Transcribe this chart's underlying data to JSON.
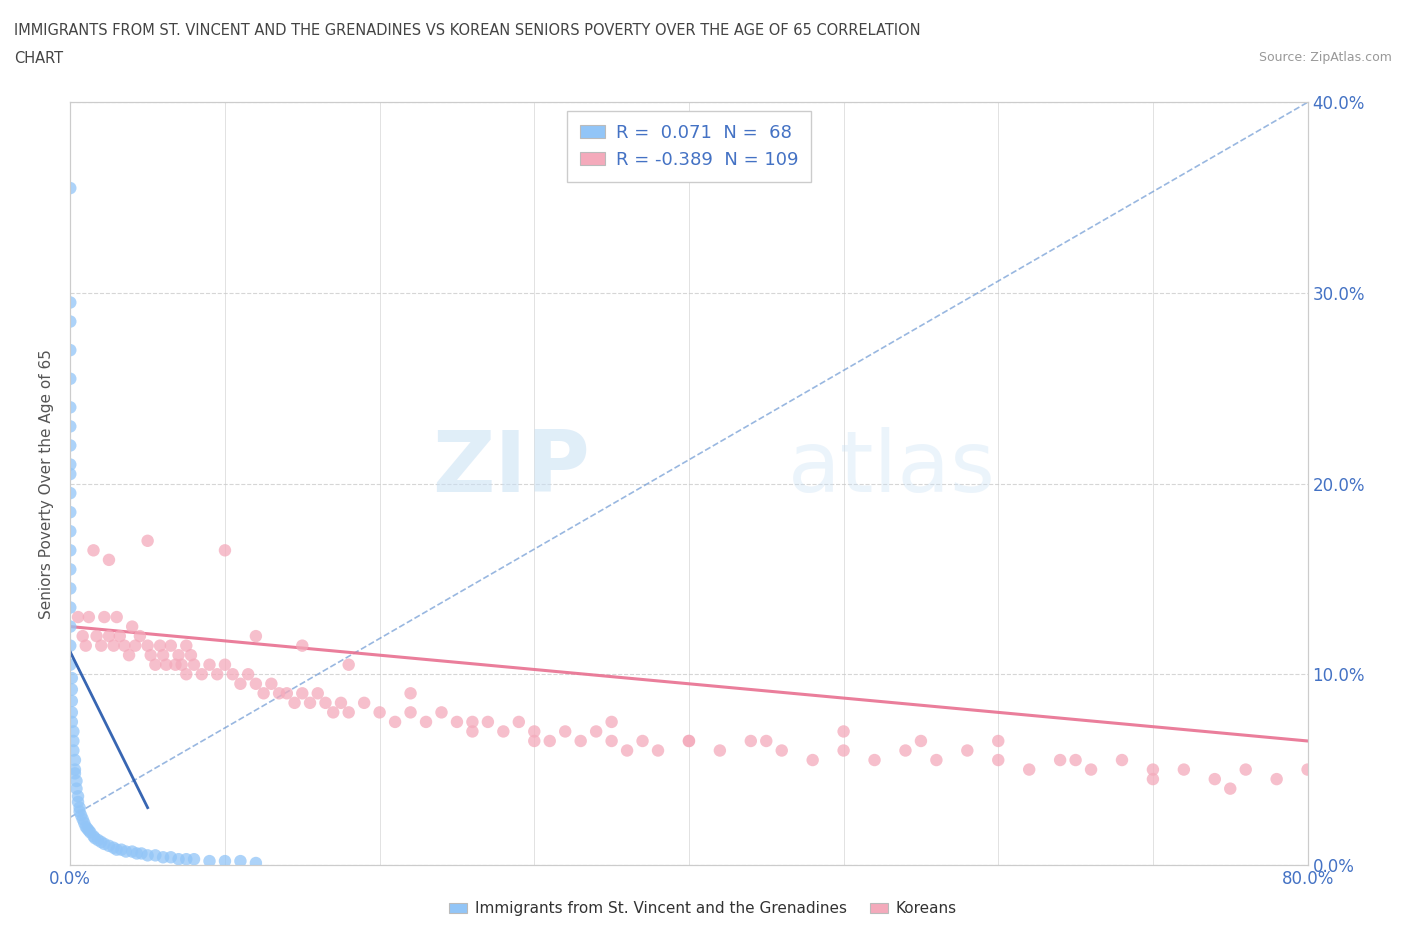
{
  "title_line1": "IMMIGRANTS FROM ST. VINCENT AND THE GRENADINES VS KOREAN SENIORS POVERTY OVER THE AGE OF 65 CORRELATION",
  "title_line2": "CHART",
  "source_text": "Source: ZipAtlas.com",
  "ylabel": "Seniors Poverty Over the Age of 65",
  "watermark_zip": "ZIP",
  "watermark_atlas": "atlas",
  "blue_color": "#92C5F7",
  "pink_color": "#F4AABB",
  "blue_line_color": "#5588CC",
  "pink_line_color": "#E87090",
  "legend_text_color": "#4472C4",
  "xlim": [
    0.0,
    0.8
  ],
  "ylim": [
    0.0,
    0.4
  ],
  "xticks": [
    0.0,
    0.1,
    0.2,
    0.3,
    0.4,
    0.5,
    0.6,
    0.7,
    0.8
  ],
  "yticks": [
    0.0,
    0.1,
    0.2,
    0.3,
    0.4
  ],
  "ytick_labels_right": [
    "0.0%",
    "10.0%",
    "20.0%",
    "30.0%",
    "40.0%"
  ],
  "blue_scatter_x": [
    0.0,
    0.0,
    0.0,
    0.0,
    0.0,
    0.0,
    0.0,
    0.0,
    0.0,
    0.0,
    0.0,
    0.0,
    0.0,
    0.0,
    0.0,
    0.0,
    0.0,
    0.0,
    0.0,
    0.0,
    0.001,
    0.001,
    0.001,
    0.001,
    0.001,
    0.002,
    0.002,
    0.002,
    0.003,
    0.003,
    0.003,
    0.004,
    0.004,
    0.005,
    0.005,
    0.006,
    0.006,
    0.007,
    0.008,
    0.009,
    0.01,
    0.011,
    0.012,
    0.013,
    0.015,
    0.016,
    0.018,
    0.02,
    0.022,
    0.025,
    0.028,
    0.03,
    0.033,
    0.036,
    0.04,
    0.043,
    0.046,
    0.05,
    0.055,
    0.06,
    0.065,
    0.07,
    0.075,
    0.08,
    0.09,
    0.1,
    0.11,
    0.12
  ],
  "blue_scatter_y": [
    0.355,
    0.295,
    0.285,
    0.27,
    0.255,
    0.24,
    0.23,
    0.22,
    0.21,
    0.205,
    0.195,
    0.185,
    0.175,
    0.165,
    0.155,
    0.145,
    0.135,
    0.125,
    0.115,
    0.105,
    0.098,
    0.092,
    0.086,
    0.08,
    0.075,
    0.07,
    0.065,
    0.06,
    0.055,
    0.05,
    0.048,
    0.044,
    0.04,
    0.036,
    0.033,
    0.03,
    0.028,
    0.026,
    0.024,
    0.022,
    0.02,
    0.019,
    0.018,
    0.017,
    0.015,
    0.014,
    0.013,
    0.012,
    0.011,
    0.01,
    0.009,
    0.008,
    0.008,
    0.007,
    0.007,
    0.006,
    0.006,
    0.005,
    0.005,
    0.004,
    0.004,
    0.003,
    0.003,
    0.003,
    0.002,
    0.002,
    0.002,
    0.001
  ],
  "pink_scatter_x": [
    0.005,
    0.008,
    0.01,
    0.012,
    0.015,
    0.017,
    0.02,
    0.022,
    0.025,
    0.028,
    0.03,
    0.032,
    0.035,
    0.038,
    0.04,
    0.042,
    0.045,
    0.05,
    0.052,
    0.055,
    0.058,
    0.06,
    0.062,
    0.065,
    0.068,
    0.07,
    0.072,
    0.075,
    0.078,
    0.08,
    0.085,
    0.09,
    0.095,
    0.1,
    0.105,
    0.11,
    0.115,
    0.12,
    0.125,
    0.13,
    0.135,
    0.14,
    0.145,
    0.15,
    0.155,
    0.16,
    0.165,
    0.17,
    0.175,
    0.18,
    0.19,
    0.2,
    0.21,
    0.22,
    0.23,
    0.24,
    0.25,
    0.26,
    0.27,
    0.28,
    0.29,
    0.3,
    0.31,
    0.32,
    0.33,
    0.34,
    0.35,
    0.36,
    0.37,
    0.38,
    0.4,
    0.42,
    0.44,
    0.46,
    0.48,
    0.5,
    0.52,
    0.54,
    0.56,
    0.58,
    0.6,
    0.62,
    0.64,
    0.66,
    0.68,
    0.7,
    0.72,
    0.74,
    0.76,
    0.78,
    0.8,
    0.025,
    0.05,
    0.075,
    0.1,
    0.12,
    0.15,
    0.18,
    0.22,
    0.26,
    0.3,
    0.35,
    0.4,
    0.45,
    0.5,
    0.55,
    0.6,
    0.65,
    0.7,
    0.75
  ],
  "pink_scatter_y": [
    0.13,
    0.12,
    0.115,
    0.13,
    0.165,
    0.12,
    0.115,
    0.13,
    0.12,
    0.115,
    0.13,
    0.12,
    0.115,
    0.11,
    0.125,
    0.115,
    0.12,
    0.115,
    0.11,
    0.105,
    0.115,
    0.11,
    0.105,
    0.115,
    0.105,
    0.11,
    0.105,
    0.1,
    0.11,
    0.105,
    0.1,
    0.105,
    0.1,
    0.105,
    0.1,
    0.095,
    0.1,
    0.095,
    0.09,
    0.095,
    0.09,
    0.09,
    0.085,
    0.09,
    0.085,
    0.09,
    0.085,
    0.08,
    0.085,
    0.08,
    0.085,
    0.08,
    0.075,
    0.08,
    0.075,
    0.08,
    0.075,
    0.07,
    0.075,
    0.07,
    0.075,
    0.07,
    0.065,
    0.07,
    0.065,
    0.07,
    0.065,
    0.06,
    0.065,
    0.06,
    0.065,
    0.06,
    0.065,
    0.06,
    0.055,
    0.06,
    0.055,
    0.06,
    0.055,
    0.06,
    0.055,
    0.05,
    0.055,
    0.05,
    0.055,
    0.05,
    0.05,
    0.045,
    0.05,
    0.045,
    0.05,
    0.16,
    0.17,
    0.115,
    0.165,
    0.12,
    0.115,
    0.105,
    0.09,
    0.075,
    0.065,
    0.075,
    0.065,
    0.065,
    0.07,
    0.065,
    0.065,
    0.055,
    0.045,
    0.04
  ],
  "blue_trend_x": [
    0.0,
    0.8
  ],
  "blue_trend_y": [
    0.025,
    0.4
  ],
  "pink_trend_x": [
    0.0,
    0.8
  ],
  "pink_trend_y": [
    0.125,
    0.065
  ]
}
